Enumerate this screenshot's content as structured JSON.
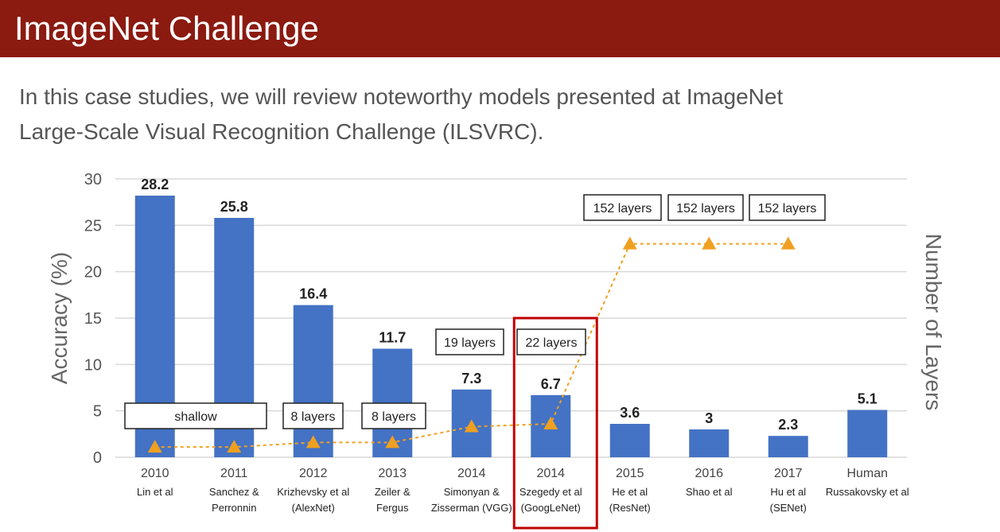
{
  "header": {
    "title": "ImageNet Challenge"
  },
  "intro": {
    "line1": "In this case studies, we will review noteworthy models presented at ImageNet",
    "line2": "Large-Scale Visual Recognition Challenge (ILSVRC)."
  },
  "chart_data": {
    "type": "bar",
    "ylabel": "Accuracy (%)",
    "y2label": "Number of Layers",
    "ylim": [
      0,
      30
    ],
    "yticks": [
      0,
      5,
      10,
      15,
      20,
      25,
      30
    ],
    "grid": true,
    "categories": [
      {
        "year": "2010",
        "line1": "Lin et al",
        "line2": ""
      },
      {
        "year": "2011",
        "line1": "Sanchez &",
        "line2": "Perronnin"
      },
      {
        "year": "2012",
        "line1": "Krizhevsky et al",
        "line2": "(AlexNet)"
      },
      {
        "year": "2013",
        "line1": "Zeiler &",
        "line2": "Fergus"
      },
      {
        "year": "2014",
        "line1": "Simonyan &",
        "line2": "Zisserman (VGG)"
      },
      {
        "year": "2014",
        "line1": "Szegedy et al",
        "line2": "(GoogLeNet)"
      },
      {
        "year": "2015",
        "line1": "He et al",
        "line2": "(ResNet)"
      },
      {
        "year": "2016",
        "line1": "Shao et al",
        "line2": ""
      },
      {
        "year": "2017",
        "line1": "Hu et al",
        "line2": "(SENet)"
      },
      {
        "year": "Human",
        "line1": "Russakovsky et al",
        "line2": ""
      }
    ],
    "values": [
      28.2,
      25.8,
      16.4,
      11.7,
      7.3,
      6.7,
      3.6,
      3,
      2.3,
      5.1
    ],
    "value_labels": [
      "28.2",
      "25.8",
      "16.4",
      "11.7",
      "7.3",
      "6.7",
      "3.6",
      "3",
      "2.3",
      "5.1"
    ],
    "layers_series": {
      "values_on_accuracy_axis": [
        1.1,
        1.1,
        1.6,
        1.6,
        3.3,
        3.6,
        23,
        23,
        23
      ],
      "labels": [
        "shallow",
        "8 layers",
        "8 layers",
        "19 layers",
        "22 layers",
        "152 layers",
        "152 layers",
        "152 layers"
      ]
    },
    "highlight_index": 5,
    "colors": {
      "bar": "#4472c4",
      "layers": "#f0a020",
      "highlight": "#c00000",
      "grid": "#d9d9d9"
    }
  }
}
